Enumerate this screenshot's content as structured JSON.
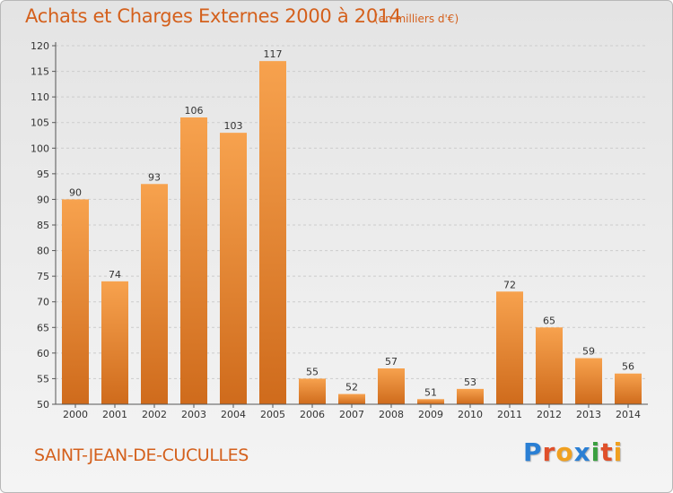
{
  "header": {
    "title": "Achats et Charges Externes 2000 à 2014",
    "unit_note": "(en milliers d'€)"
  },
  "footer": {
    "commune": "SAINT-JEAN-DE-CUCULLES",
    "brand_letters": [
      "P",
      "r",
      "o",
      "x",
      "i",
      "t",
      "i"
    ],
    "brand_colors": [
      "#2a7fd4",
      "#e0502a",
      "#f0a020",
      "#2a7fd4",
      "#3aa040",
      "#e0502a",
      "#f0a020"
    ]
  },
  "colors": {
    "bar_light": "#f7a24e",
    "bar_dark": "#cf6b1c",
    "text_accent": "#d4601c",
    "axis": "#555555",
    "grid": "#cccccc"
  },
  "chart_data": {
    "type": "bar",
    "title": "Achats et Charges Externes 2000 à 2014",
    "subtitle": "(en milliers d'€)",
    "categories": [
      "2000",
      "2001",
      "2002",
      "2003",
      "2004",
      "2005",
      "2006",
      "2007",
      "2008",
      "2009",
      "2010",
      "2011",
      "2012",
      "2013",
      "2014"
    ],
    "values": [
      90,
      74,
      93,
      106,
      103,
      117,
      55,
      52,
      57,
      51,
      53,
      72,
      65,
      59,
      56
    ],
    "ylim": [
      50,
      120
    ],
    "yticks": [
      50,
      55,
      60,
      65,
      70,
      75,
      80,
      85,
      90,
      95,
      100,
      105,
      110,
      115,
      120
    ],
    "grid": "horizontal dashed",
    "legend": "none"
  }
}
